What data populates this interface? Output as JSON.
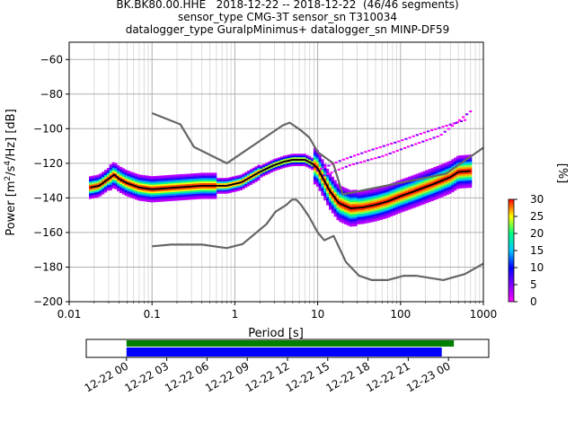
{
  "title": {
    "line1": "BK.BK80.00.HHE   2018-12-22 -- 2018-12-22  (46/46 segments)",
    "line2": "sensor_type CMG-3T sensor_sn T310034",
    "line3": "datalogger_type GuralpMinimus+ datalogger_sn MINP-DF59"
  },
  "chart_data": [
    {
      "type": "heatmap",
      "description_type": "probabilistic power spectral density",
      "xlabel": "Period [s]",
      "ylabel_parts": [
        "Power [m",
        "2",
        "/s",
        "4",
        "/Hz] [dB]"
      ],
      "xscale": "log",
      "xlim": [
        0.01,
        1000
      ],
      "ylim": [
        -200,
        -50
      ],
      "xtick_values": [
        0.01,
        0.1,
        1,
        10,
        100,
        1000
      ],
      "xtick_labels": [
        "0.01",
        "0.1",
        "1",
        "10",
        "100",
        "1000"
      ],
      "ytick_values": [
        -200,
        -180,
        -160,
        -140,
        -120,
        -100,
        -80,
        -60
      ],
      "ytick_labels": [
        "−200",
        "−180",
        "−160",
        "−140",
        "−120",
        "−100",
        "−80",
        "−60"
      ],
      "grid": true,
      "colorbar": {
        "label": "[%]",
        "range": [
          0,
          30
        ],
        "tick_values": [
          0,
          5,
          10,
          15,
          20,
          25,
          30
        ],
        "tick_labels": [
          "0",
          "5",
          "10",
          "15",
          "20",
          "25",
          "30"
        ],
        "colormap": [
          "#ff00ff",
          "#7f00ff",
          "#0000ff",
          "#00c8ff",
          "#00ff80",
          "#ffff00",
          "#ff0000"
        ]
      },
      "series": [
        {
          "name": "",
          "role": "high-noise-model",
          "color": "#666666",
          "points": [
            [
              0.1,
              -91
            ],
            [
              0.22,
              -97.5
            ],
            [
              0.32,
              -110.5
            ],
            [
              0.8,
              -120
            ],
            [
              3.8,
              -98
            ],
            [
              4.6,
              -96.5
            ],
            [
              6.3,
              -101
            ],
            [
              7.9,
              -105
            ],
            [
              10,
              -113.5
            ],
            [
              15.4,
              -120
            ],
            [
              20,
              -138
            ],
            [
              354.8,
              -126
            ],
            [
              1000,
              -111
            ]
          ]
        },
        {
          "name": "",
          "role": "low-noise-model",
          "color": "#666666",
          "points": [
            [
              0.1,
              -168
            ],
            [
              0.17,
              -167
            ],
            [
              0.4,
              -167
            ],
            [
              0.8,
              -169
            ],
            [
              1.24,
              -166.7
            ],
            [
              2.4,
              -155.2
            ],
            [
              3.1,
              -148
            ],
            [
              4.2,
              -144
            ],
            [
              4.9,
              -141
            ],
            [
              5.5,
              -141
            ],
            [
              6.3,
              -144
            ],
            [
              7.9,
              -151
            ],
            [
              10,
              -160
            ],
            [
              12,
              -164.5
            ],
            [
              15.6,
              -162
            ],
            [
              21.9,
              -177
            ],
            [
              31.6,
              -185
            ],
            [
              45,
              -187.5
            ],
            [
              70,
              -187.5
            ],
            [
              110,
              -185
            ],
            [
              154,
              -185
            ],
            [
              328,
              -187.5
            ],
            [
              600,
              -184
            ],
            [
              1000,
              -178
            ]
          ]
        },
        {
          "name": "",
          "role": "mean-psd",
          "color": "#000000",
          "points": [
            [
              0.018,
              -134
            ],
            [
              0.023,
              -133
            ],
            [
              0.03,
              -129
            ],
            [
              0.035,
              -126.5
            ],
            [
              0.04,
              -129
            ],
            [
              0.05,
              -131.5
            ],
            [
              0.07,
              -134
            ],
            [
              0.1,
              -135
            ],
            [
              0.2,
              -134
            ],
            [
              0.4,
              -133
            ],
            [
              0.8,
              -133
            ],
            [
              1.2,
              -131
            ],
            [
              2,
              -125
            ],
            [
              3,
              -121
            ],
            [
              4,
              -119
            ],
            [
              5,
              -118
            ],
            [
              7,
              -118
            ],
            [
              8.5,
              -120
            ],
            [
              10,
              -123
            ],
            [
              12,
              -130
            ],
            [
              14,
              -136
            ],
            [
              18,
              -143
            ],
            [
              25,
              -146
            ],
            [
              35,
              -145.5
            ],
            [
              50,
              -144
            ],
            [
              70,
              -142
            ],
            [
              100,
              -139
            ],
            [
              150,
              -136
            ],
            [
              250,
              -132
            ],
            [
              400,
              -128
            ],
            [
              500,
              -125
            ],
            [
              700,
              -124.5
            ]
          ]
        }
      ],
      "upper_outliers": [
        {
          "name": "",
          "points": [
            [
              10,
              -124
            ],
            [
              20,
              -118
            ],
            [
              40,
              -113
            ],
            [
              100,
              -107
            ],
            [
              200,
              -102
            ],
            [
              600,
              -95
            ]
          ]
        },
        {
          "name": "",
          "points": [
            [
              12,
              -127
            ],
            [
              25,
              -121
            ],
            [
              60,
              -116
            ],
            [
              150,
              -109
            ],
            [
              300,
              -104
            ],
            [
              700,
              -90
            ]
          ]
        }
      ]
    },
    {
      "type": "heatmap",
      "description_type": "data coverage timeline",
      "xlim": [
        "2018-12-21 21:00",
        "2018-12-23 03:00"
      ],
      "tick_values": [
        "2018-12-22 00:00",
        "2018-12-22 03:00",
        "2018-12-22 06:00",
        "2018-12-22 09:00",
        "2018-12-22 12:00",
        "2018-12-22 15:00",
        "2018-12-22 18:00",
        "2018-12-22 21:00",
        "2018-12-23 00:00"
      ],
      "tick_labels": [
        "12-22 00",
        "12-22 03",
        "12-22 06",
        "12-22 09",
        "12-22 12",
        "12-22 15",
        "12-22 18",
        "12-22 21",
        "12-23 00"
      ],
      "bars": [
        {
          "name": "",
          "role": "data-available",
          "color": "#008000",
          "start": "2018-12-22 00:00",
          "end": "2018-12-23 00:24"
        },
        {
          "name": "",
          "role": "psd-used",
          "color": "#0000ff",
          "start": "2018-12-22 00:00",
          "end": "2018-12-22 23:30"
        }
      ]
    }
  ]
}
